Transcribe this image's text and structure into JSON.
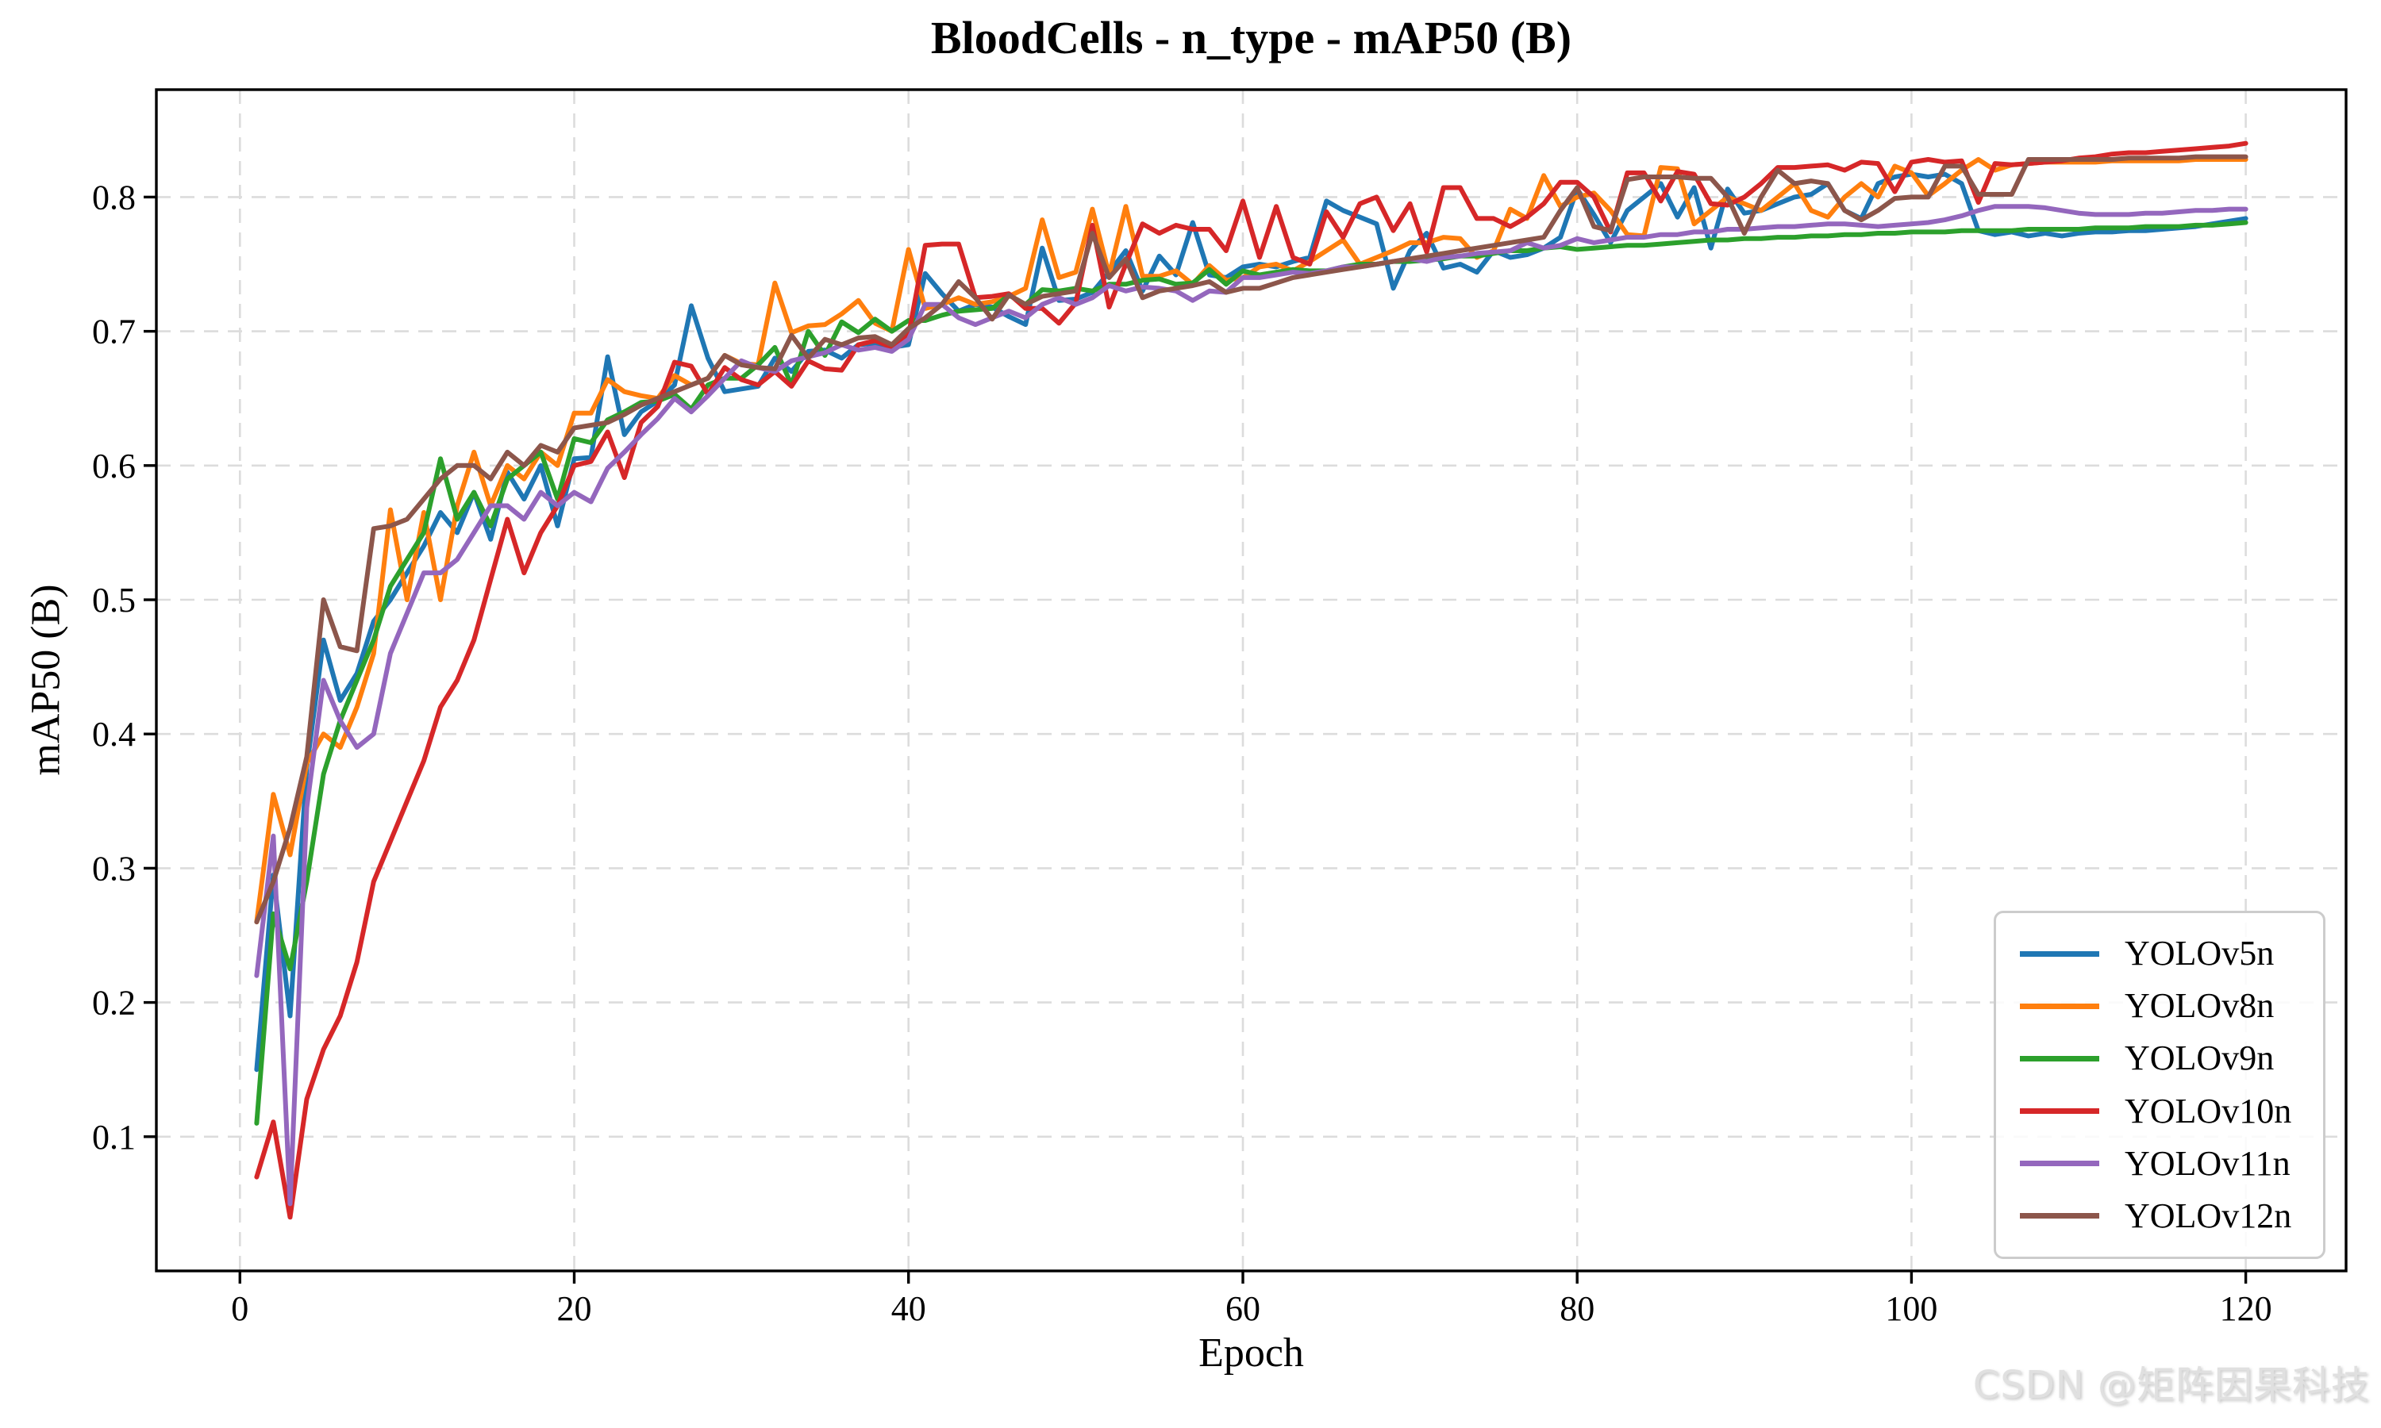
{
  "watermark": "CSDN @矩阵因果科技",
  "chart_data": {
    "type": "line",
    "title": "BloodCells - n_type - mAP50 (B)",
    "xlabel": "Epoch",
    "ylabel": "mAP50 (B)",
    "x_ticks": [
      0,
      20,
      40,
      60,
      80,
      100,
      120
    ],
    "y_ticks": [
      0.1,
      0.2,
      0.3,
      0.4,
      0.5,
      0.6,
      0.7,
      0.8
    ],
    "xlim": [
      -5,
      126
    ],
    "ylim": [
      0,
      0.88
    ],
    "grid": true,
    "grid_style": "dashed",
    "legend_position": "lower right",
    "x_start": 1,
    "series": [
      {
        "name": "YOLOv5n",
        "color": "#1f77b4",
        "values": [
          0.15,
          0.295,
          0.19,
          0.375,
          0.47,
          0.425,
          0.445,
          0.484,
          0.5,
          0.52,
          0.54,
          0.565,
          0.55,
          0.58,
          0.545,
          0.595,
          0.575,
          0.6,
          0.555,
          0.605,
          0.606,
          0.681,
          0.623,
          0.64,
          0.648,
          0.66,
          0.719,
          0.68,
          0.655,
          0.657,
          0.659,
          0.68,
          0.67,
          0.685,
          0.686,
          0.68,
          0.69,
          0.691,
          0.688,
          0.69,
          0.743,
          0.728,
          0.715,
          0.72,
          0.718,
          0.711,
          0.705,
          0.762,
          0.723,
          0.724,
          0.729,
          0.744,
          0.76,
          0.73,
          0.756,
          0.742,
          0.781,
          0.742,
          0.74,
          0.748,
          0.75,
          0.748,
          0.752,
          0.755,
          0.797,
          0.79,
          0.785,
          0.78,
          0.732,
          0.76,
          0.773,
          0.747,
          0.75,
          0.744,
          0.76,
          0.755,
          0.757,
          0.762,
          0.77,
          0.806,
          0.787,
          0.766,
          0.79,
          0.8,
          0.81,
          0.785,
          0.807,
          0.762,
          0.806,
          0.788,
          0.79,
          0.795,
          0.8,
          0.802,
          0.81,
          0.79,
          0.784,
          0.81,
          0.815,
          0.817,
          0.815,
          0.817,
          0.81,
          0.775,
          0.772,
          0.774,
          0.771,
          0.773,
          0.771,
          0.773,
          0.774,
          0.774,
          0.775,
          0.775,
          0.776,
          0.777,
          0.778,
          0.78,
          0.782,
          0.784
        ]
      },
      {
        "name": "YOLOv8n",
        "color": "#ff7f0e",
        "values": [
          0.26,
          0.355,
          0.31,
          0.378,
          0.4,
          0.39,
          0.42,
          0.46,
          0.567,
          0.5,
          0.565,
          0.5,
          0.57,
          0.61,
          0.57,
          0.6,
          0.59,
          0.61,
          0.6,
          0.639,
          0.639,
          0.664,
          0.655,
          0.652,
          0.65,
          0.667,
          0.66,
          0.665,
          0.682,
          0.676,
          0.675,
          0.736,
          0.699,
          0.704,
          0.705,
          0.713,
          0.723,
          0.706,
          0.7,
          0.761,
          0.717,
          0.72,
          0.725,
          0.72,
          0.722,
          0.726,
          0.732,
          0.783,
          0.74,
          0.744,
          0.791,
          0.742,
          0.793,
          0.741,
          0.741,
          0.745,
          0.735,
          0.749,
          0.738,
          0.74,
          0.748,
          0.75,
          0.745,
          0.752,
          0.76,
          0.768,
          0.75,
          0.755,
          0.76,
          0.766,
          0.766,
          0.77,
          0.769,
          0.755,
          0.76,
          0.791,
          0.784,
          0.816,
          0.793,
          0.8,
          0.803,
          0.79,
          0.772,
          0.771,
          0.822,
          0.821,
          0.78,
          0.79,
          0.8,
          0.795,
          0.79,
          0.8,
          0.81,
          0.79,
          0.785,
          0.8,
          0.81,
          0.8,
          0.823,
          0.818,
          0.801,
          0.81,
          0.82,
          0.828,
          0.82,
          0.824,
          0.825,
          0.826,
          0.826,
          0.826,
          0.826,
          0.827,
          0.827,
          0.827,
          0.827,
          0.827,
          0.828,
          0.828,
          0.828,
          0.828
        ]
      },
      {
        "name": "YOLOv9n",
        "color": "#2ca02c",
        "values": [
          0.11,
          0.266,
          0.225,
          0.29,
          0.37,
          0.41,
          0.44,
          0.47,
          0.51,
          0.53,
          0.55,
          0.605,
          0.56,
          0.58,
          0.555,
          0.59,
          0.6,
          0.61,
          0.575,
          0.62,
          0.617,
          0.634,
          0.64,
          0.647,
          0.648,
          0.653,
          0.642,
          0.66,
          0.665,
          0.665,
          0.675,
          0.688,
          0.66,
          0.7,
          0.682,
          0.707,
          0.699,
          0.709,
          0.7,
          0.708,
          0.708,
          0.712,
          0.715,
          0.716,
          0.717,
          0.727,
          0.72,
          0.731,
          0.73,
          0.732,
          0.73,
          0.735,
          0.735,
          0.738,
          0.739,
          0.735,
          0.736,
          0.746,
          0.735,
          0.745,
          0.742,
          0.744,
          0.746,
          0.745,
          0.745,
          0.748,
          0.75,
          0.75,
          0.752,
          0.752,
          0.753,
          0.754,
          0.756,
          0.756,
          0.758,
          0.76,
          0.76,
          0.762,
          0.763,
          0.761,
          0.762,
          0.763,
          0.764,
          0.764,
          0.765,
          0.766,
          0.767,
          0.768,
          0.768,
          0.769,
          0.769,
          0.77,
          0.77,
          0.771,
          0.771,
          0.772,
          0.772,
          0.773,
          0.773,
          0.774,
          0.774,
          0.774,
          0.775,
          0.775,
          0.775,
          0.775,
          0.776,
          0.776,
          0.776,
          0.776,
          0.777,
          0.777,
          0.777,
          0.778,
          0.778,
          0.778,
          0.779,
          0.779,
          0.78,
          0.781
        ]
      },
      {
        "name": "YOLOv10n",
        "color": "#d62728",
        "values": [
          0.07,
          0.111,
          0.04,
          0.128,
          0.165,
          0.19,
          0.23,
          0.29,
          0.32,
          0.35,
          0.38,
          0.42,
          0.44,
          0.47,
          0.515,
          0.56,
          0.52,
          0.55,
          0.57,
          0.6,
          0.603,
          0.625,
          0.591,
          0.632,
          0.644,
          0.677,
          0.674,
          0.653,
          0.673,
          0.664,
          0.66,
          0.67,
          0.659,
          0.678,
          0.672,
          0.671,
          0.69,
          0.693,
          0.688,
          0.697,
          0.764,
          0.765,
          0.765,
          0.725,
          0.726,
          0.728,
          0.717,
          0.717,
          0.706,
          0.721,
          0.779,
          0.718,
          0.75,
          0.78,
          0.773,
          0.779,
          0.776,
          0.776,
          0.76,
          0.797,
          0.755,
          0.793,
          0.755,
          0.75,
          0.789,
          0.77,
          0.795,
          0.8,
          0.775,
          0.795,
          0.759,
          0.807,
          0.807,
          0.784,
          0.784,
          0.778,
          0.785,
          0.795,
          0.811,
          0.811,
          0.8,
          0.774,
          0.818,
          0.818,
          0.797,
          0.819,
          0.817,
          0.795,
          0.794,
          0.8,
          0.81,
          0.822,
          0.822,
          0.823,
          0.824,
          0.82,
          0.826,
          0.825,
          0.804,
          0.826,
          0.828,
          0.826,
          0.827,
          0.796,
          0.825,
          0.824,
          0.825,
          0.826,
          0.827,
          0.829,
          0.83,
          0.832,
          0.833,
          0.833,
          0.834,
          0.835,
          0.836,
          0.837,
          0.838,
          0.84
        ]
      },
      {
        "name": "YOLOv11n",
        "color": "#9467bd",
        "values": [
          0.22,
          0.324,
          0.05,
          0.345,
          0.44,
          0.41,
          0.39,
          0.4,
          0.46,
          0.49,
          0.52,
          0.52,
          0.53,
          0.55,
          0.57,
          0.57,
          0.56,
          0.58,
          0.57,
          0.58,
          0.573,
          0.598,
          0.61,
          0.623,
          0.635,
          0.65,
          0.64,
          0.652,
          0.665,
          0.678,
          0.673,
          0.67,
          0.678,
          0.681,
          0.684,
          0.69,
          0.686,
          0.688,
          0.685,
          0.694,
          0.72,
          0.72,
          0.71,
          0.705,
          0.71,
          0.715,
          0.71,
          0.72,
          0.725,
          0.72,
          0.725,
          0.734,
          0.73,
          0.733,
          0.732,
          0.73,
          0.723,
          0.73,
          0.729,
          0.74,
          0.74,
          0.742,
          0.744,
          0.743,
          0.745,
          0.748,
          0.748,
          0.75,
          0.752,
          0.754,
          0.752,
          0.755,
          0.756,
          0.758,
          0.759,
          0.76,
          0.766,
          0.762,
          0.764,
          0.769,
          0.766,
          0.768,
          0.77,
          0.77,
          0.772,
          0.772,
          0.774,
          0.774,
          0.776,
          0.776,
          0.777,
          0.778,
          0.778,
          0.779,
          0.78,
          0.78,
          0.779,
          0.778,
          0.779,
          0.78,
          0.781,
          0.783,
          0.786,
          0.79,
          0.793,
          0.793,
          0.793,
          0.792,
          0.79,
          0.788,
          0.787,
          0.787,
          0.787,
          0.788,
          0.788,
          0.789,
          0.79,
          0.79,
          0.791,
          0.791
        ]
      },
      {
        "name": "YOLOv12n",
        "color": "#8c564b",
        "values": [
          0.26,
          0.29,
          0.33,
          0.383,
          0.5,
          0.465,
          0.462,
          0.553,
          0.555,
          0.56,
          0.575,
          0.59,
          0.6,
          0.6,
          0.59,
          0.61,
          0.6,
          0.615,
          0.61,
          0.628,
          0.63,
          0.632,
          0.638,
          0.645,
          0.65,
          0.655,
          0.66,
          0.665,
          0.682,
          0.675,
          0.673,
          0.672,
          0.697,
          0.68,
          0.694,
          0.69,
          0.695,
          0.696,
          0.69,
          0.702,
          0.71,
          0.72,
          0.737,
          0.725,
          0.709,
          0.727,
          0.72,
          0.726,
          0.728,
          0.73,
          0.773,
          0.74,
          0.754,
          0.725,
          0.73,
          0.732,
          0.734,
          0.737,
          0.729,
          0.732,
          0.732,
          0.736,
          0.74,
          0.742,
          0.744,
          0.746,
          0.748,
          0.75,
          0.752,
          0.754,
          0.756,
          0.758,
          0.76,
          0.762,
          0.764,
          0.766,
          0.768,
          0.77,
          0.79,
          0.807,
          0.778,
          0.775,
          0.813,
          0.815,
          0.815,
          0.815,
          0.814,
          0.814,
          0.8,
          0.773,
          0.8,
          0.82,
          0.81,
          0.812,
          0.81,
          0.79,
          0.783,
          0.79,
          0.799,
          0.8,
          0.8,
          0.823,
          0.823,
          0.802,
          0.802,
          0.802,
          0.828,
          0.828,
          0.828,
          0.828,
          0.828,
          0.828,
          0.829,
          0.829,
          0.829,
          0.829,
          0.83,
          0.83,
          0.83,
          0.83
        ]
      }
    ]
  }
}
